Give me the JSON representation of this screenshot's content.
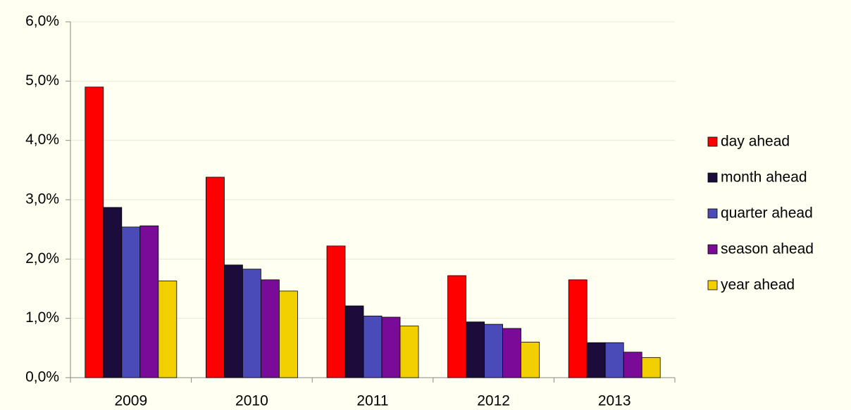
{
  "chart_data": {
    "type": "bar",
    "categories": [
      "2009",
      "2010",
      "2011",
      "2012",
      "2013"
    ],
    "series": [
      {
        "name": "day ahead",
        "color": "#ff0000",
        "values": [
          4.9,
          3.38,
          2.22,
          1.72,
          1.65
        ]
      },
      {
        "name": "month ahead",
        "color": "#1c0c3c",
        "values": [
          2.87,
          1.9,
          1.21,
          0.94,
          0.59
        ]
      },
      {
        "name": "quarter ahead",
        "color": "#4a4ab8",
        "values": [
          2.54,
          1.83,
          1.04,
          0.9,
          0.59
        ]
      },
      {
        "name": "season ahead",
        "color": "#7a0a98",
        "values": [
          2.56,
          1.65,
          1.02,
          0.83,
          0.43
        ]
      },
      {
        "name": "year ahead",
        "color": "#f2d000",
        "values": [
          1.63,
          1.46,
          0.87,
          0.6,
          0.34
        ]
      }
    ],
    "ylim": [
      0,
      6
    ],
    "yticks": [
      {
        "value": 0,
        "label": "0,0%"
      },
      {
        "value": 1,
        "label": "1,0%"
      },
      {
        "value": 2,
        "label": "2,0%"
      },
      {
        "value": 3,
        "label": "3,0%"
      },
      {
        "value": 4,
        "label": "4,0%"
      },
      {
        "value": 5,
        "label": "5,0%"
      },
      {
        "value": 6,
        "label": "6,0%"
      }
    ],
    "grid": true,
    "legend": "right"
  }
}
